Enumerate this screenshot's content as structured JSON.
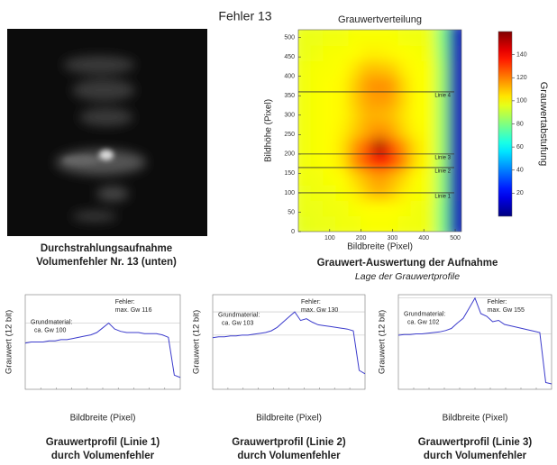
{
  "title": "Fehler 13",
  "image_panel": {
    "caption": [
      "Durchstrahlungsaufnahme",
      "Volumenfehler Nr. 13 (unten)"
    ]
  },
  "chart_data": [
    {
      "type": "heatmap",
      "title": "Grauwertverteilung",
      "xlabel": "Bildbreite (Pixel)",
      "ylabel": "Bildhöhe (Pixel)",
      "x": [
        20,
        60,
        100,
        140,
        180,
        220,
        260,
        300,
        340,
        380,
        420,
        460,
        500
      ],
      "y": [
        20,
        60,
        100,
        140,
        180,
        220,
        260,
        300,
        340,
        380,
        420,
        460,
        500
      ],
      "z": [
        [
          96,
          97,
          97,
          98,
          98,
          99,
          99,
          99,
          98,
          98,
          97,
          80,
          8
        ],
        [
          97,
          97,
          98,
          98,
          99,
          100,
          100,
          100,
          99,
          98,
          97,
          80,
          8
        ],
        [
          97,
          98,
          98,
          99,
          102,
          108,
          112,
          108,
          102,
          99,
          98,
          82,
          8
        ],
        [
          98,
          98,
          99,
          100,
          106,
          112,
          116,
          112,
          106,
          100,
          98,
          82,
          8
        ],
        [
          98,
          99,
          100,
          104,
          118,
          128,
          140,
          130,
          118,
          104,
          99,
          84,
          8
        ],
        [
          98,
          99,
          100,
          104,
          116,
          126,
          155,
          128,
          116,
          104,
          99,
          84,
          8
        ],
        [
          98,
          99,
          100,
          102,
          108,
          114,
          118,
          114,
          106,
          101,
          99,
          84,
          8
        ],
        [
          98,
          99,
          100,
          101,
          106,
          112,
          112,
          110,
          104,
          100,
          99,
          84,
          8
        ],
        [
          98,
          99,
          100,
          101,
          108,
          114,
          116,
          114,
          106,
          100,
          99,
          84,
          8
        ],
        [
          98,
          99,
          100,
          101,
          108,
          116,
          118,
          116,
          106,
          100,
          99,
          84,
          8
        ],
        [
          98,
          99,
          99,
          100,
          104,
          110,
          110,
          108,
          102,
          100,
          99,
          84,
          8
        ],
        [
          97,
          98,
          99,
          99,
          100,
          102,
          102,
          101,
          100,
          99,
          98,
          82,
          8
        ],
        [
          97,
          97,
          98,
          98,
          99,
          99,
          99,
          99,
          98,
          98,
          97,
          80,
          8
        ]
      ],
      "xlim": [
        0,
        520
      ],
      "ylim": [
        0,
        520
      ],
      "xticks": [
        100,
        200,
        300,
        400,
        500
      ],
      "yticks": [
        0,
        50,
        100,
        150,
        200,
        250,
        300,
        350,
        400,
        450,
        500
      ],
      "zlim": [
        0,
        160
      ],
      "colormap": "jet",
      "colorbar": {
        "label": "Grauwertabstufung",
        "ticks": [
          20,
          40,
          60,
          80,
          100,
          120,
          140
        ]
      },
      "profile_lines": [
        {
          "label": "Linie 4",
          "y": 360
        },
        {
          "label": "Linie 3",
          "y": 200
        },
        {
          "label": "Linie 2",
          "y": 165
        },
        {
          "label": "Linie 1",
          "y": 100
        }
      ],
      "caption": "Grauwert-Auswertung der Aufnahme",
      "subcaption": "Lage der Grauwertprofile"
    },
    {
      "type": "line",
      "xlabel": "Bildbreite (Pixel)",
      "ylabel": "Grauwert (12 bit)",
      "caption": [
        "Grauwertprofil (Linie 1)",
        "durch Volumenfehler"
      ],
      "annotations": [
        [
          "Grundmaterial:",
          "ca. Gw 100"
        ],
        [
          "Fehler:",
          "max. Gw 116"
        ]
      ],
      "x": [
        0,
        20,
        40,
        60,
        80,
        100,
        120,
        140,
        160,
        180,
        200,
        220,
        240,
        260,
        280,
        300,
        320,
        340,
        360,
        380,
        400,
        420,
        440,
        460,
        480,
        500,
        520
      ],
      "values": [
        99,
        100,
        100,
        100,
        101,
        101,
        102,
        102,
        103,
        104,
        105,
        106,
        108,
        112,
        116,
        111,
        109,
        108,
        108,
        108,
        107,
        107,
        107,
        106,
        104,
        72,
        70
      ],
      "color": "#3b3bcc",
      "xlim": [
        0,
        520
      ],
      "ylim": [
        60,
        140
      ],
      "hlines": [
        100,
        116
      ]
    },
    {
      "type": "line",
      "xlabel": "Bildbreite (Pixel)",
      "ylabel": "Grauwert (12 bit)",
      "caption": [
        "Grauwertprofil (Linie 2)",
        "durch Volumenfehler"
      ],
      "annotations": [
        [
          "Grundmaterial:",
          "ca. Gw 103"
        ],
        [
          "Fehler:",
          "max. Gw 130"
        ]
      ],
      "x": [
        0,
        20,
        40,
        60,
        80,
        100,
        120,
        140,
        160,
        180,
        200,
        220,
        240,
        260,
        280,
        300,
        320,
        340,
        360,
        380,
        400,
        420,
        440,
        460,
        480,
        500,
        520
      ],
      "values": [
        100,
        101,
        101,
        102,
        102,
        103,
        103,
        104,
        105,
        106,
        108,
        112,
        118,
        124,
        130,
        120,
        122,
        118,
        115,
        114,
        113,
        112,
        111,
        110,
        108,
        62,
        58
      ],
      "color": "#3b3bcc",
      "xlim": [
        0,
        520
      ],
      "ylim": [
        40,
        150
      ],
      "hlines": [
        103,
        130
      ]
    },
    {
      "type": "line",
      "xlabel": "Bildbreite (Pixel)",
      "ylabel": "Grauwert (12 bit)",
      "caption": [
        "Grauwertprofil (Linie 3)",
        "durch Volumenfehler"
      ],
      "annotations": [
        [
          "Grundmaterial:",
          "ca. Gw 102"
        ],
        [
          "Fehler:",
          "max. Gw 155"
        ]
      ],
      "x": [
        0,
        20,
        40,
        60,
        80,
        100,
        120,
        140,
        160,
        180,
        200,
        220,
        240,
        260,
        280,
        300,
        320,
        340,
        360,
        380,
        400,
        420,
        440,
        460,
        480,
        500,
        520
      ],
      "values": [
        100,
        101,
        101,
        102,
        102,
        103,
        104,
        105,
        107,
        110,
        118,
        125,
        140,
        155,
        132,
        128,
        120,
        122,
        116,
        114,
        112,
        110,
        108,
        106,
        104,
        30,
        28
      ],
      "color": "#3b3bcc",
      "xlim": [
        0,
        520
      ],
      "ylim": [
        20,
        160
      ],
      "hlines": [
        102,
        155
      ]
    }
  ]
}
